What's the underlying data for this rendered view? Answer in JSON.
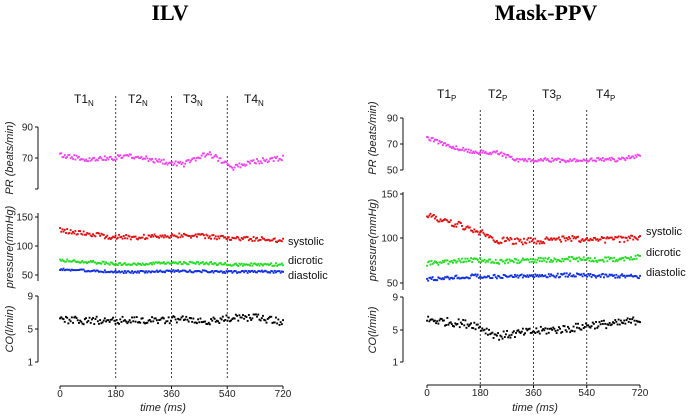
{
  "chart_data": [
    {
      "type": "scatter",
      "title": "ILV",
      "time_subscript": "N",
      "time_markers": [
        {
          "base": "T1",
          "x": 90
        },
        {
          "base": "T2",
          "x": 270
        },
        {
          "base": "T3",
          "x": 450
        },
        {
          "base": "T4",
          "x": 630
        }
      ],
      "phase_boundaries": [
        180,
        360,
        540
      ],
      "xlabel": "time (ms)",
      "xlim": [
        0,
        720
      ],
      "xticks": [
        "0",
        "180",
        "360",
        "540",
        "720"
      ],
      "panels": [
        {
          "ylabel": "PR (beats/min)",
          "ylim": [
            50,
            90
          ],
          "yticks": [
            "50",
            "70",
            "90"
          ],
          "yticks_shown": [
            "70",
            "90"
          ],
          "series": [
            {
              "values": [
                72,
                69,
                70,
                71,
                68,
                66,
                73,
                64,
                68,
                70
              ],
              "color": "#ee44ee",
              "noise": 1.6
            }
          ]
        },
        {
          "ylabel": "pressure(mmHg)",
          "ylim": [
            40,
            155
          ],
          "yticks": [
            "50",
            "100",
            "150"
          ],
          "yticks_shown": [
            "50",
            "100",
            "150"
          ],
          "series": [
            {
              "name": "systolic",
              "values": [
                127,
                122,
                116,
                115,
                117,
                119,
                116,
                113,
                112,
                110
              ],
              "color": "#e01010",
              "noise": 4.0
            },
            {
              "name": "dicrotic",
              "values": [
                76,
                73,
                70,
                68,
                70,
                71,
                70,
                68,
                68,
                68
              ],
              "color": "#22dd22",
              "noise": 2.4
            },
            {
              "name": "diastolic",
              "values": [
                60,
                58,
                56,
                55,
                56,
                57,
                56,
                55,
                56,
                55
              ],
              "color": "#1030e0",
              "noise": 2.0
            }
          ]
        },
        {
          "ylabel": "CO(l/min)",
          "ylim": [
            1,
            9
          ],
          "yticks": [
            "1",
            "5",
            "9"
          ],
          "yticks_shown": [
            "1",
            "5",
            "9"
          ],
          "series": [
            {
              "values": [
                6.2,
                6.0,
                6.1,
                6.0,
                6.1,
                6.2,
                6.0,
                6.3,
                6.4,
                5.8
              ],
              "color": "#000000",
              "noise": 0.45
            }
          ]
        }
      ]
    },
    {
      "type": "scatter",
      "title": "Mask-PPV",
      "time_subscript": "P",
      "time_markers": [
        {
          "base": "T1",
          "x": 90
        },
        {
          "base": "T2",
          "x": 270
        },
        {
          "base": "T3",
          "x": 450
        },
        {
          "base": "T4",
          "x": 630
        }
      ],
      "phase_boundaries": [
        180,
        360,
        540
      ],
      "xlabel": "time (ms)",
      "xlim": [
        0,
        720
      ],
      "xticks": [
        "0",
        "180",
        "360",
        "540",
        "720"
      ],
      "panels": [
        {
          "ylabel": "PR (beats/min)",
          "ylim": [
            50,
            90
          ],
          "yticks": [
            "50",
            "70",
            "90"
          ],
          "yticks_shown": [
            "50",
            "70",
            "90"
          ],
          "series": [
            {
              "values": [
                75,
                68,
                64,
                63,
                57,
                58,
                57,
                58,
                58,
                61
              ],
              "color": "#ee44ee",
              "noise": 1.5
            }
          ]
        },
        {
          "ylabel": "pressure(mmHg)",
          "ylim": [
            40,
            155
          ],
          "yticks": [
            "50",
            "100",
            "150"
          ],
          "yticks_shown": [
            "50",
            "100",
            "150"
          ],
          "series": [
            {
              "name": "systolic",
              "values": [
                126,
                118,
                110,
                98,
                97,
                98,
                100,
                99,
                99,
                101
              ],
              "color": "#e01010",
              "noise": 3.6
            },
            {
              "name": "dicrotic",
              "values": [
                72,
                74,
                76,
                74,
                75,
                76,
                77,
                76,
                77,
                79
              ],
              "color": "#22dd22",
              "noise": 2.6
            },
            {
              "name": "diastolic",
              "values": [
                54,
                56,
                58,
                57,
                58,
                58,
                59,
                58,
                58,
                57
              ],
              "color": "#1030e0",
              "noise": 2.2
            }
          ]
        },
        {
          "ylabel": "CO(l/min)",
          "ylim": [
            1,
            9
          ],
          "yticks": [
            "1",
            "5",
            "9"
          ],
          "yticks_shown": [
            "1",
            "5",
            "9"
          ],
          "series": [
            {
              "values": [
                6.2,
                5.9,
                5.6,
                4.2,
                4.6,
                4.9,
                5.1,
                5.6,
                5.7,
                6.2
              ],
              "color": "#000000",
              "noise": 0.5
            }
          ]
        }
      ]
    }
  ]
}
